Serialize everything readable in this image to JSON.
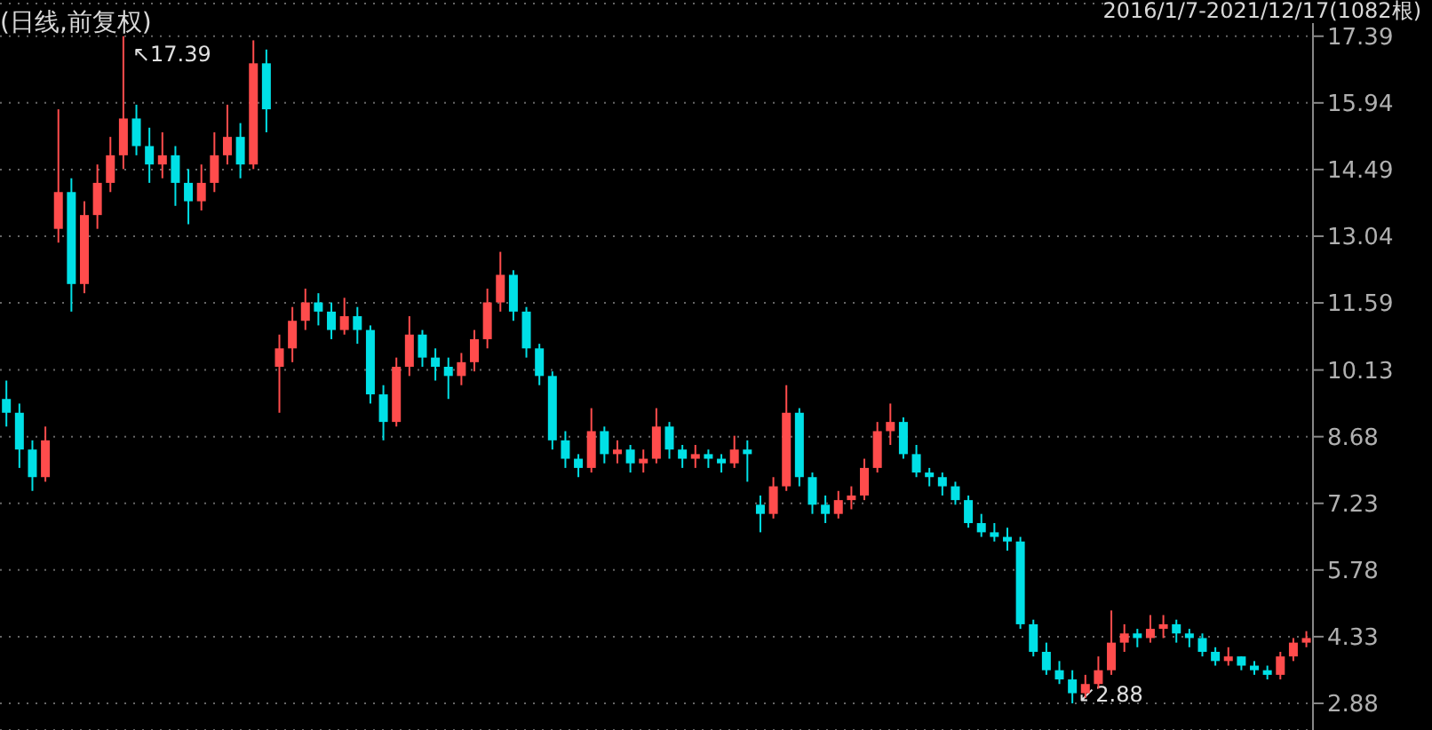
{
  "chart_data": {
    "type": "candlestick",
    "title": "(日线,前复权)",
    "categories": [
      null,
      null,
      null,
      null,
      null,
      null,
      null,
      null,
      null,
      null,
      null,
      null,
      null,
      null,
      null,
      null,
      null,
      null,
      null,
      null,
      null,
      null,
      null,
      null,
      null,
      null,
      null,
      null,
      null,
      null,
      null,
      null,
      null,
      null,
      null,
      null,
      null,
      null,
      null,
      null,
      null,
      null,
      null,
      null,
      null,
      null,
      null,
      null,
      null,
      null,
      null,
      null,
      null,
      null,
      null,
      null,
      null,
      null,
      null,
      null,
      null,
      null,
      null,
      null,
      null,
      null,
      null,
      null,
      null,
      null,
      null,
      null,
      null,
      null,
      null,
      null,
      null,
      null,
      null,
      null,
      null,
      null,
      null,
      null,
      null,
      null,
      null,
      null,
      null,
      null,
      null,
      null,
      null,
      null,
      null,
      null,
      null,
      null,
      null,
      null,
      null
    ],
    "ohlc": [
      [
        9.5,
        9.9,
        8.9,
        9.2
      ],
      [
        9.2,
        9.4,
        8.0,
        8.4
      ],
      [
        8.4,
        8.6,
        7.5,
        7.8
      ],
      [
        7.8,
        8.9,
        7.7,
        8.6
      ],
      [
        13.2,
        15.8,
        12.9,
        14.0
      ],
      [
        14.0,
        14.3,
        11.4,
        12.0
      ],
      [
        12.0,
        13.8,
        11.8,
        13.5
      ],
      [
        13.5,
        14.6,
        13.2,
        14.2
      ],
      [
        14.2,
        15.2,
        14.0,
        14.8
      ],
      [
        14.8,
        17.39,
        14.5,
        15.6
      ],
      [
        15.6,
        15.9,
        14.8,
        15.0
      ],
      [
        15.0,
        15.4,
        14.2,
        14.6
      ],
      [
        14.6,
        15.3,
        14.3,
        14.8
      ],
      [
        14.8,
        15.0,
        13.7,
        14.2
      ],
      [
        14.2,
        14.5,
        13.3,
        13.8
      ],
      [
        13.8,
        14.6,
        13.6,
        14.2
      ],
      [
        14.2,
        15.3,
        14.0,
        14.8
      ],
      [
        14.8,
        15.9,
        14.6,
        15.2
      ],
      [
        15.2,
        15.5,
        14.3,
        14.6
      ],
      [
        14.6,
        17.3,
        14.5,
        16.8
      ],
      [
        16.8,
        17.1,
        15.3,
        15.8
      ],
      [
        10.2,
        10.9,
        9.2,
        10.6
      ],
      [
        10.6,
        11.5,
        10.3,
        11.2
      ],
      [
        11.2,
        11.9,
        11.0,
        11.6
      ],
      [
        11.6,
        11.8,
        11.1,
        11.4
      ],
      [
        11.4,
        11.6,
        10.8,
        11.0
      ],
      [
        11.0,
        11.7,
        10.9,
        11.3
      ],
      [
        11.3,
        11.5,
        10.7,
        11.0
      ],
      [
        11.0,
        11.1,
        9.4,
        9.6
      ],
      [
        9.6,
        9.8,
        8.6,
        9.0
      ],
      [
        9.0,
        10.4,
        8.9,
        10.2
      ],
      [
        10.2,
        11.3,
        10.0,
        10.9
      ],
      [
        10.9,
        11.0,
        10.2,
        10.4
      ],
      [
        10.4,
        10.6,
        9.9,
        10.2
      ],
      [
        10.2,
        10.4,
        9.5,
        10.0
      ],
      [
        10.0,
        10.5,
        9.8,
        10.3
      ],
      [
        10.3,
        11.0,
        10.1,
        10.8
      ],
      [
        10.8,
        11.9,
        10.6,
        11.6
      ],
      [
        11.6,
        12.7,
        11.4,
        12.2
      ],
      [
        12.2,
        12.3,
        11.2,
        11.4
      ],
      [
        11.4,
        11.5,
        10.4,
        10.6
      ],
      [
        10.6,
        10.7,
        9.8,
        10.0
      ],
      [
        10.0,
        10.1,
        8.4,
        8.6
      ],
      [
        8.6,
        8.8,
        8.0,
        8.2
      ],
      [
        8.2,
        8.3,
        7.8,
        8.0
      ],
      [
        8.0,
        9.3,
        7.9,
        8.8
      ],
      [
        8.8,
        8.9,
        8.1,
        8.3
      ],
      [
        8.3,
        8.6,
        8.1,
        8.4
      ],
      [
        8.4,
        8.5,
        7.9,
        8.1
      ],
      [
        8.1,
        8.4,
        7.9,
        8.2
      ],
      [
        8.2,
        9.3,
        8.1,
        8.9
      ],
      [
        8.9,
        9.0,
        8.2,
        8.4
      ],
      [
        8.4,
        8.5,
        8.0,
        8.2
      ],
      [
        8.2,
        8.5,
        8.0,
        8.3
      ],
      [
        8.3,
        8.4,
        8.0,
        8.2
      ],
      [
        8.2,
        8.3,
        7.9,
        8.1
      ],
      [
        8.1,
        8.7,
        8.0,
        8.4
      ],
      [
        8.4,
        8.6,
        7.7,
        8.3
      ],
      [
        7.2,
        7.4,
        6.6,
        7.0
      ],
      [
        7.0,
        7.8,
        6.9,
        7.6
      ],
      [
        7.6,
        9.8,
        7.5,
        9.2
      ],
      [
        9.2,
        9.3,
        7.6,
        7.8
      ],
      [
        7.8,
        7.9,
        7.0,
        7.2
      ],
      [
        7.2,
        7.4,
        6.8,
        7.0
      ],
      [
        7.0,
        7.5,
        6.9,
        7.3
      ],
      [
        7.3,
        7.6,
        7.1,
        7.4
      ],
      [
        7.4,
        8.2,
        7.3,
        8.0
      ],
      [
        8.0,
        9.0,
        7.9,
        8.8
      ],
      [
        8.8,
        9.4,
        8.5,
        9.0
      ],
      [
        9.0,
        9.1,
        8.2,
        8.3
      ],
      [
        8.3,
        8.5,
        7.8,
        7.9
      ],
      [
        7.9,
        8.0,
        7.6,
        7.8
      ],
      [
        7.8,
        7.9,
        7.4,
        7.6
      ],
      [
        7.6,
        7.7,
        7.2,
        7.3
      ],
      [
        7.3,
        7.4,
        6.7,
        6.8
      ],
      [
        6.8,
        7.0,
        6.5,
        6.6
      ],
      [
        6.6,
        6.8,
        6.4,
        6.5
      ],
      [
        6.5,
        6.7,
        6.2,
        6.4
      ],
      [
        6.4,
        6.5,
        4.5,
        4.6
      ],
      [
        4.6,
        4.7,
        3.9,
        4.0
      ],
      [
        4.0,
        4.2,
        3.5,
        3.6
      ],
      [
        3.6,
        3.8,
        3.3,
        3.4
      ],
      [
        3.4,
        3.6,
        2.88,
        3.1
      ],
      [
        3.1,
        3.5,
        3.0,
        3.3
      ],
      [
        3.3,
        3.9,
        3.2,
        3.6
      ],
      [
        3.6,
        4.9,
        3.5,
        4.2
      ],
      [
        4.2,
        4.6,
        4.0,
        4.4
      ],
      [
        4.4,
        4.5,
        4.1,
        4.3
      ],
      [
        4.3,
        4.8,
        4.2,
        4.5
      ],
      [
        4.5,
        4.8,
        4.3,
        4.6
      ],
      [
        4.6,
        4.7,
        4.2,
        4.4
      ],
      [
        4.4,
        4.5,
        4.1,
        4.3
      ],
      [
        4.3,
        4.4,
        3.9,
        4.0
      ],
      [
        4.0,
        4.1,
        3.7,
        3.8
      ],
      [
        3.8,
        4.1,
        3.7,
        3.9
      ],
      [
        3.9,
        3.9,
        3.6,
        3.7
      ],
      [
        3.7,
        3.8,
        3.5,
        3.6
      ],
      [
        3.6,
        3.7,
        3.4,
        3.5
      ],
      [
        3.5,
        4.0,
        3.4,
        3.9
      ],
      [
        3.9,
        4.3,
        3.8,
        4.2
      ],
      [
        4.2,
        4.45,
        4.1,
        4.3
      ]
    ],
    "colors": [
      "#00e0e6",
      "#00e0e6",
      "#00e0e6",
      "#ff4c4c",
      "#ff4c4c",
      "#00e0e6",
      "#ff4c4c",
      "#ff4c4c",
      "#ff4c4c",
      "#ff4c4c",
      "#00e0e6",
      "#00e0e6",
      "#ff4c4c",
      "#00e0e6",
      "#00e0e6",
      "#ff4c4c",
      "#ff4c4c",
      "#ff4c4c",
      "#00e0e6",
      "#ff4c4c",
      "#00e0e6",
      "#ff4c4c",
      "#ff4c4c",
      "#ff4c4c",
      "#00e0e6",
      "#00e0e6",
      "#ff4c4c",
      "#00e0e6",
      "#00e0e6",
      "#00e0e6",
      "#ff4c4c",
      "#ff4c4c",
      "#00e0e6",
      "#00e0e6",
      "#00e0e6",
      "#ff4c4c",
      "#ff4c4c",
      "#ff4c4c",
      "#ff4c4c",
      "#00e0e6",
      "#00e0e6",
      "#00e0e6",
      "#00e0e6",
      "#00e0e6",
      "#00e0e6",
      "#ff4c4c",
      "#00e0e6",
      "#ff4c4c",
      "#00e0e6",
      "#ff4c4c",
      "#ff4c4c",
      "#00e0e6",
      "#00e0e6",
      "#ff4c4c",
      "#00e0e6",
      "#00e0e6",
      "#ff4c4c",
      "#00e0e6",
      "#00e0e6",
      "#ff4c4c",
      "#ff4c4c",
      "#00e0e6",
      "#00e0e6",
      "#00e0e6",
      "#ff4c4c",
      "#ff4c4c",
      "#ff4c4c",
      "#ff4c4c",
      "#ff4c4c",
      "#00e0e6",
      "#00e0e6",
      "#00e0e6",
      "#00e0e6",
      "#00e0e6",
      "#00e0e6",
      "#00e0e6",
      "#00e0e6",
      "#00e0e6",
      "#00e0e6",
      "#00e0e6",
      "#00e0e6",
      "#00e0e6",
      "#00e0e6",
      "#ff4c4c",
      "#ff4c4c",
      "#ff4c4c",
      "#ff4c4c",
      "#00e0e6",
      "#ff4c4c",
      "#ff4c4c",
      "#00e0e6",
      "#00e0e6",
      "#00e0e6",
      "#00e0e6",
      "#ff4c4c",
      "#00e0e6",
      "#00e0e6",
      "#00e0e6",
      "#ff4c4c",
      "#ff4c4c",
      "#ff4c4c"
    ],
    "ylim": [
      2.3,
      18.1
    ],
    "yticks": [
      2.88,
      4.33,
      5.78,
      7.23,
      8.68,
      10.13,
      11.59,
      13.04,
      14.49,
      15.94,
      17.39
    ],
    "grid": "y",
    "legend": false,
    "tick_labels": "y",
    "annotations": [
      "↖17.39",
      "↙2.88",
      "2016/1/7-2021/12/17(1082根)"
    ]
  }
}
